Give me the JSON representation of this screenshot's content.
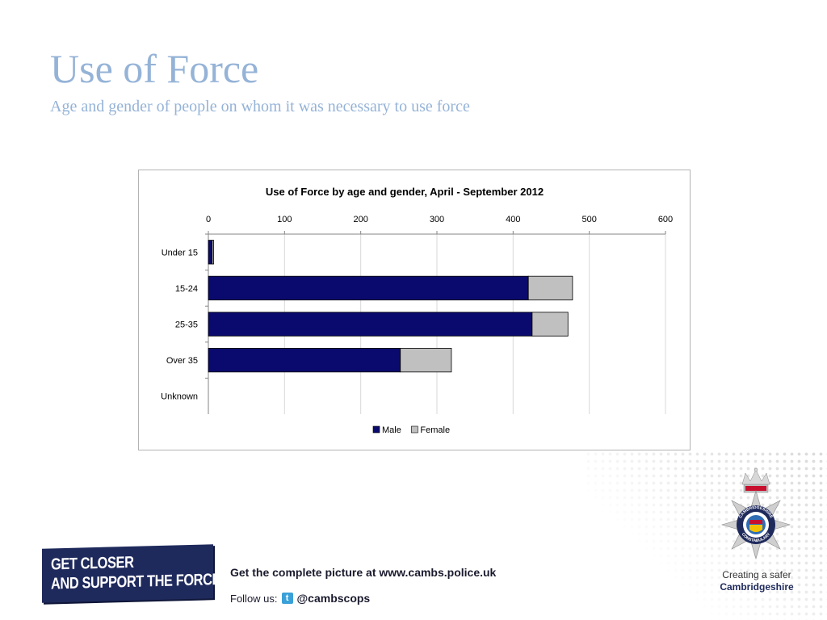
{
  "slide": {
    "title": "Use of Force",
    "subtitle": "Age and gender of people on whom it was necessary to use force"
  },
  "chart_data": {
    "type": "bar",
    "orientation": "horizontal",
    "stacked": true,
    "title": "Use of Force by age and gender, April - September 2012",
    "xlabel": "",
    "ylabel": "",
    "xlim": [
      0,
      600
    ],
    "xticks": [
      0,
      100,
      200,
      300,
      400,
      500,
      600
    ],
    "x_axis_position": "top",
    "grid": true,
    "legend": "bottom",
    "categories": [
      "Under 15",
      "15-24",
      "25-35",
      "Over 35",
      "Unknown"
    ],
    "series": [
      {
        "name": "Male",
        "color": "#0a0a6e",
        "values": [
          5,
          420,
          425,
          252,
          0
        ]
      },
      {
        "name": "Female",
        "color": "#c0c0c0",
        "values": [
          2,
          58,
          47,
          67,
          0
        ]
      }
    ]
  },
  "footer": {
    "banner_line1": "GET CLOSER",
    "banner_line2": "AND SUPPORT THE FORCE!",
    "tagline": "Get the complete picture at www.cambs.police.uk",
    "follow_label": "Follow us:",
    "twitter_handle": "@cambscops",
    "crest_line1": "Creating a safer",
    "crest_line2": "Cambridgeshire",
    "crest_ring_top": "CAMBRIDGESHIRE",
    "crest_ring_bottom": "CONSTABULARY"
  }
}
